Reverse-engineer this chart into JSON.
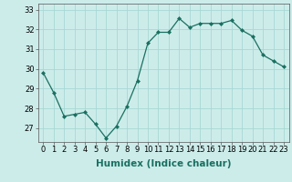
{
  "x": [
    0,
    1,
    2,
    3,
    4,
    5,
    6,
    7,
    8,
    9,
    10,
    11,
    12,
    13,
    14,
    15,
    16,
    17,
    18,
    19,
    20,
    21,
    22,
    23
  ],
  "y": [
    29.8,
    28.8,
    27.6,
    27.7,
    27.8,
    27.2,
    26.5,
    27.1,
    28.1,
    29.4,
    31.3,
    31.85,
    31.85,
    32.55,
    32.1,
    32.3,
    32.3,
    32.3,
    32.45,
    31.95,
    31.65,
    30.7,
    30.4,
    30.1
  ],
  "line_color": "#1a7060",
  "marker": "D",
  "marker_size": 2,
  "bg_color": "#ccecea",
  "grid_color": "#a8d8d4",
  "xlabel": "Humidex (Indice chaleur)",
  "ylabel": "",
  "ylim": [
    26.3,
    33.3
  ],
  "xlim": [
    -0.5,
    23.5
  ],
  "yticks": [
    27,
    28,
    29,
    30,
    31,
    32,
    33
  ],
  "xtick_labels": [
    "0",
    "1",
    "2",
    "3",
    "4",
    "5",
    "6",
    "7",
    "8",
    "9",
    "10",
    "11",
    "12",
    "13",
    "14",
    "15",
    "16",
    "17",
    "18",
    "19",
    "20",
    "21",
    "22",
    "23"
  ],
  "tick_fontsize": 6,
  "xlabel_fontsize": 7.5,
  "spine_color": "#555555"
}
